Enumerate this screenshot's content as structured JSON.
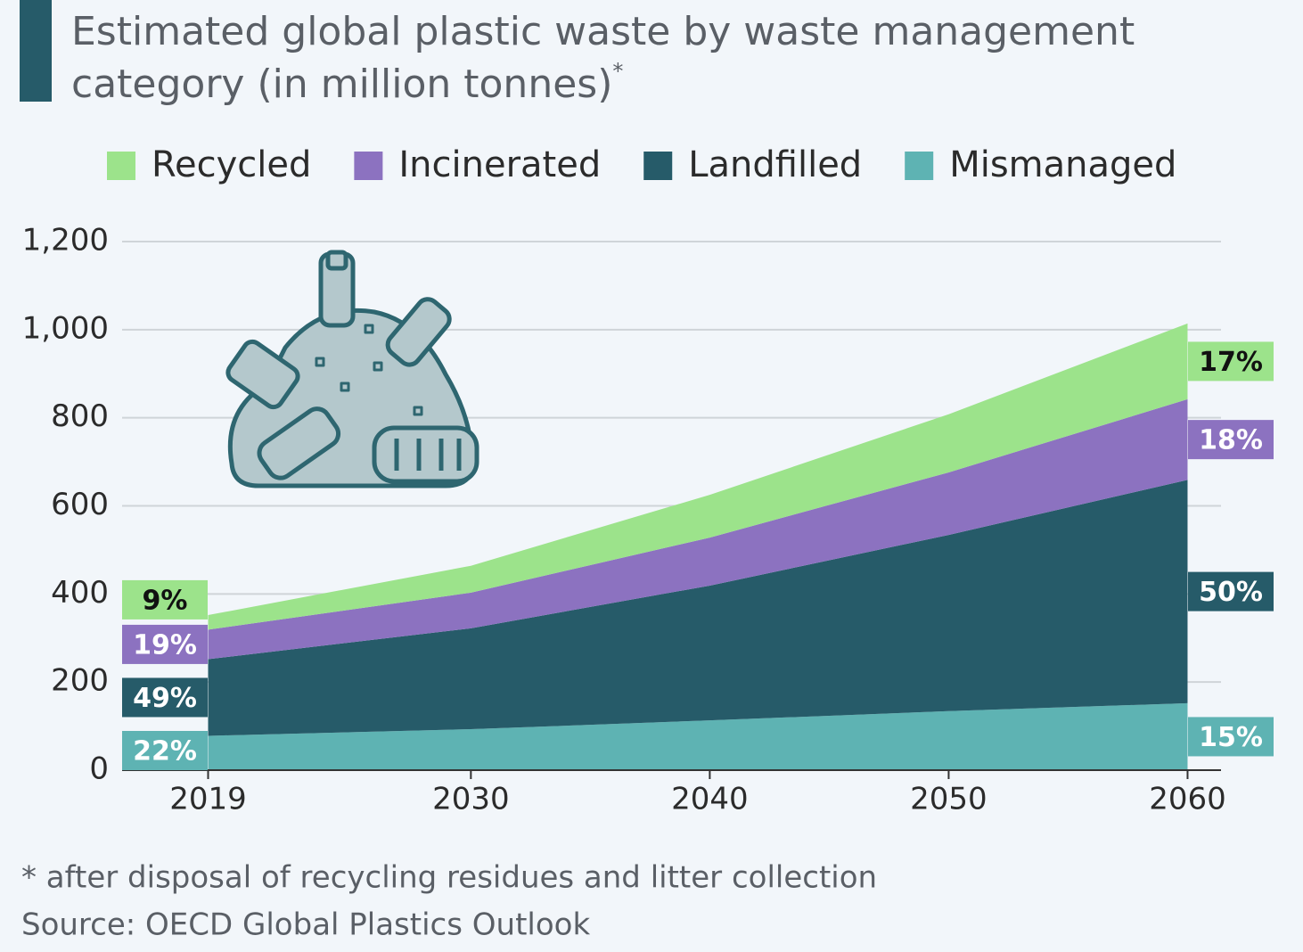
{
  "chart_data": {
    "type": "stacked-area",
    "title": "Estimated global plastic waste by waste management category (in million tonnes)",
    "title_mark": "*",
    "x": [
      2019,
      2030,
      2040,
      2050,
      2060
    ],
    "xlim": [
      2015.4,
      2061.4
    ],
    "xticks": [
      2019,
      2030,
      2040,
      2050,
      2060
    ],
    "ylim": [
      0,
      1200
    ],
    "yticks": [
      0,
      200,
      400,
      600,
      800,
      {
        "value": 1000,
        "label": "1,000"
      },
      {
        "value": 1200,
        "label": "1,200"
      }
    ],
    "grid": true,
    "series": [
      {
        "name": "Mismanaged",
        "color": "#5eb3b3",
        "values": [
          78,
          93,
          113,
          134,
          152
        ],
        "share_labels": [
          "22%",
          "15%"
        ],
        "label_color": "#ffffff"
      },
      {
        "name": "Landfilled",
        "color": "#265b69",
        "values": [
          174,
          229,
          306,
          400,
          507
        ],
        "share_labels": [
          "49%",
          "50%"
        ],
        "label_color": "#ffffff"
      },
      {
        "name": "Incinerated",
        "color": "#8c72c0",
        "values": [
          67,
          81,
          109,
          142,
          183
        ],
        "share_labels": [
          "19%",
          "18%"
        ],
        "label_color": "#ffffff"
      },
      {
        "name": "Recycled",
        "color": "#9ce38b",
        "values": [
          33,
          61,
          97,
          132,
          172
        ],
        "share_labels": [
          "9%",
          "17%"
        ],
        "label_color": "#111111"
      }
    ],
    "legend_order": [
      3,
      2,
      1,
      0
    ],
    "footnote": "* after disposal of recycling residues and litter collection",
    "source": "Source: OECD Global Plastics Outlook"
  }
}
